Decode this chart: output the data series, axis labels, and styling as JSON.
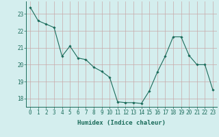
{
  "x": [
    0,
    1,
    2,
    3,
    4,
    5,
    6,
    7,
    8,
    9,
    10,
    11,
    12,
    13,
    14,
    15,
    16,
    17,
    18,
    19,
    20,
    21,
    22,
    23
  ],
  "y": [
    23.4,
    22.6,
    22.4,
    22.2,
    20.5,
    21.1,
    20.4,
    20.3,
    19.85,
    19.6,
    19.25,
    17.8,
    17.75,
    17.75,
    17.7,
    18.45,
    19.55,
    20.5,
    21.65,
    21.65,
    20.55,
    20.0,
    20.0,
    18.5
  ],
  "line_color": "#1a6b5a",
  "marker": "D",
  "marker_size": 1.8,
  "bg_color": "#d4eeee",
  "grid_color": "#c8a8a8",
  "xlabel": "Humidex (Indice chaleur)",
  "xlim": [
    -0.5,
    23.5
  ],
  "ylim": [
    17.5,
    23.75
  ],
  "yticks": [
    18,
    19,
    20,
    21,
    22,
    23
  ],
  "xticks": [
    0,
    1,
    2,
    3,
    4,
    5,
    6,
    7,
    8,
    9,
    10,
    11,
    12,
    13,
    14,
    15,
    16,
    17,
    18,
    19,
    20,
    21,
    22,
    23
  ],
  "xtick_labels": [
    "0",
    "1",
    "2",
    "3",
    "4",
    "5",
    "6",
    "7",
    "8",
    "9",
    "10",
    "11",
    "12",
    "13",
    "14",
    "15",
    "16",
    "17",
    "18",
    "19",
    "20",
    "21",
    "22",
    "23"
  ],
  "tick_fontsize": 5.5,
  "label_fontsize": 6.5,
  "line_width": 0.8
}
